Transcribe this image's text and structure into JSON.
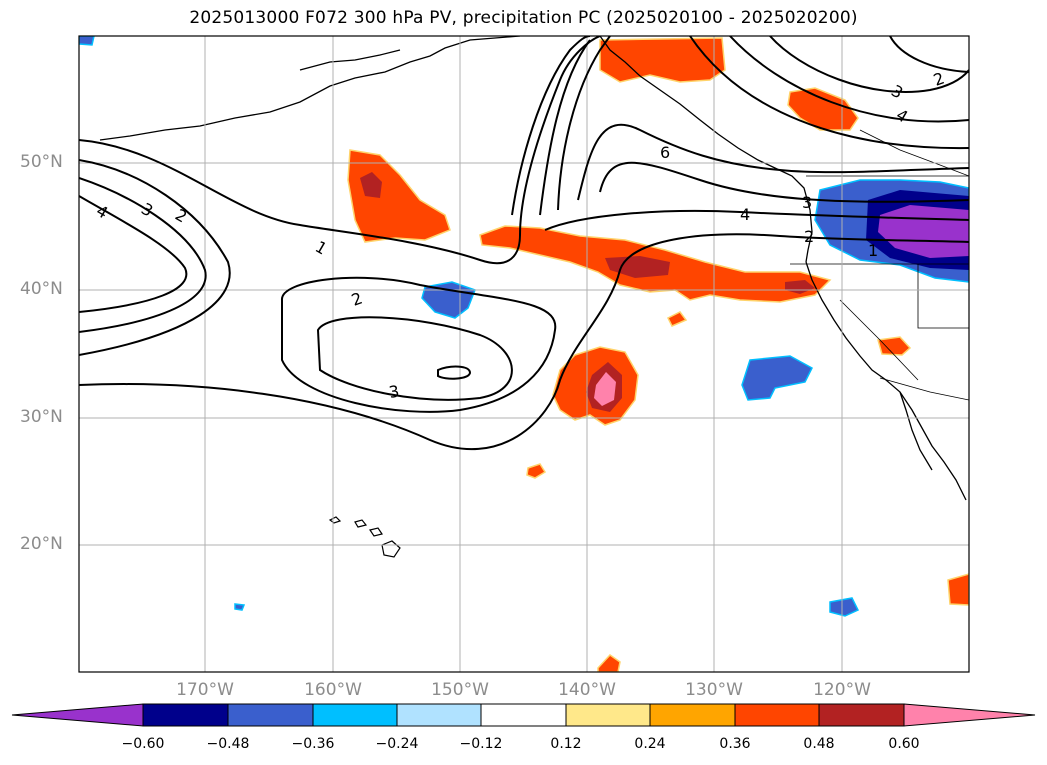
{
  "title": "2025013000 F072 300 hPa PV, precipitation PC (2025020100 - 2025020200)",
  "map": {
    "lat_labels": [
      "50°N",
      "40°N",
      "30°N",
      "20°N"
    ],
    "lon_labels": [
      "170°W",
      "160°W",
      "150°W",
      "140°W",
      "130°W",
      "120°W"
    ],
    "contour_labels": [
      "4",
      "3",
      "2",
      "1",
      "2",
      "3",
      "6",
      "4",
      "3",
      "2",
      "3",
      "4",
      "2",
      "1"
    ]
  },
  "colorbar": {
    "ticks": [
      "−0.60",
      "−0.48",
      "−0.36",
      "−0.24",
      "−0.12",
      "0.12",
      "0.24",
      "0.36",
      "0.48",
      "0.60"
    ],
    "colors": [
      "#9932cc",
      "#00008b",
      "#3a5fcd",
      "#00bfff",
      "#b0e2ff",
      "#ffffff",
      "#ffe88a",
      "#ffa500",
      "#ff4500",
      "#b22222",
      "#ff82ab"
    ]
  }
}
